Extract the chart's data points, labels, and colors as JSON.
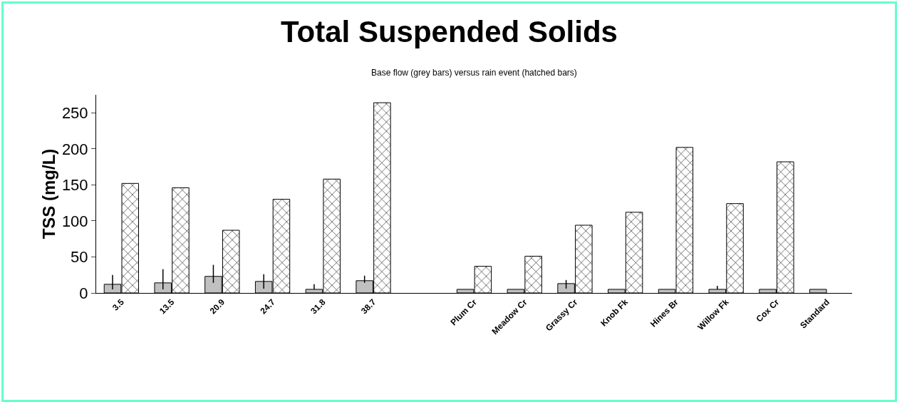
{
  "chart_data": {
    "type": "bar",
    "title": "Total Suspended Solids",
    "subtitle": "Base flow (grey bars) versus rain event (hatched bars)",
    "ylabel": "TSS (mg/L)",
    "categories": [
      "3.5",
      "13.5",
      "20.9",
      "24.7",
      "31.8",
      "38.7",
      null,
      "Plum Cr",
      "Meadow Cr",
      "Grassy Cr",
      "Knob Fk",
      "Hines Br",
      "Willow Fk",
      "Cox Cr",
      "Standard"
    ],
    "series": [
      {
        "color": "#c0c0c0",
        "values": [
          12,
          14,
          23,
          16,
          5,
          17,
          null,
          5,
          5,
          13,
          5,
          5,
          5,
          5,
          5
        ],
        "errors": [
          [
            5,
            25
          ],
          [
            5,
            33
          ],
          [
            14,
            39
          ],
          [
            6,
            26
          ],
          [
            5,
            12
          ],
          [
            14,
            24
          ],
          null,
          null,
          null,
          [
            6,
            18
          ],
          null,
          null,
          [
            5,
            10
          ],
          null,
          null
        ]
      },
      {
        "color": "#000000",
        "values": [
          152,
          146,
          87,
          130,
          158,
          264,
          null,
          37,
          51,
          94,
          112,
          202,
          124,
          182,
          null
        ]
      }
    ],
    "ylim": [
      0,
      275
    ],
    "yticks": [
      0,
      50,
      100,
      150,
      200,
      250
    ],
    "grid": false
  }
}
